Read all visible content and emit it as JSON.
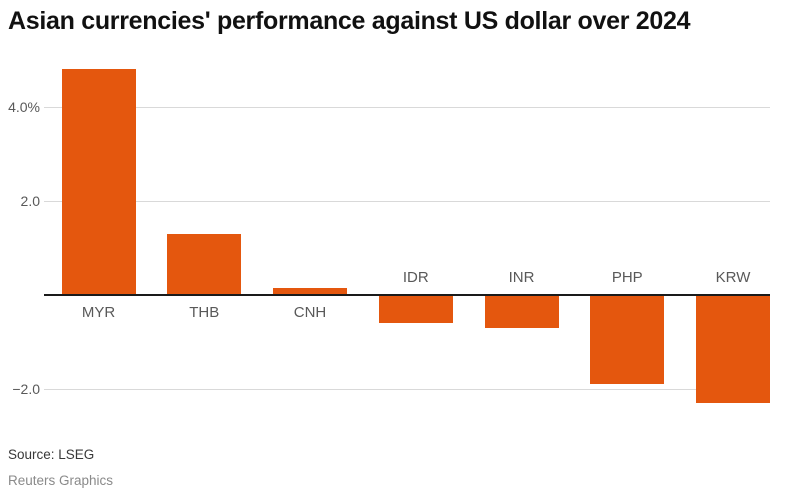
{
  "title": "Asian currencies' performance against US dollar over 2024",
  "source": "Source: LSEG",
  "credit": "Reuters Graphics",
  "colors": {
    "bar": "#E4570E",
    "grid": "#d9d9d9",
    "axis": "#1a1a1a",
    "tick_label": "#595959",
    "category_label": "#595959",
    "title": "#111111"
  },
  "chart_data": {
    "type": "bar",
    "title": "Asian currencies' performance against US dollar over 2024",
    "categories": [
      "MYR",
      "THB",
      "CNH",
      "IDR",
      "INR",
      "PHP",
      "KRW"
    ],
    "values": [
      4.8,
      1.3,
      0.15,
      -0.6,
      -0.7,
      -1.9,
      -2.3
    ],
    "unit": "%",
    "xlabel": "",
    "ylabel": "",
    "ylim": [
      -2.6,
      4.9
    ],
    "yticks": [
      {
        "value": 4,
        "label": "4.0%"
      },
      {
        "value": 2,
        "label": "2.0"
      },
      {
        "value": -2,
        "label": "−2.0"
      }
    ],
    "grid": true,
    "legend": false,
    "baseline": 0
  }
}
